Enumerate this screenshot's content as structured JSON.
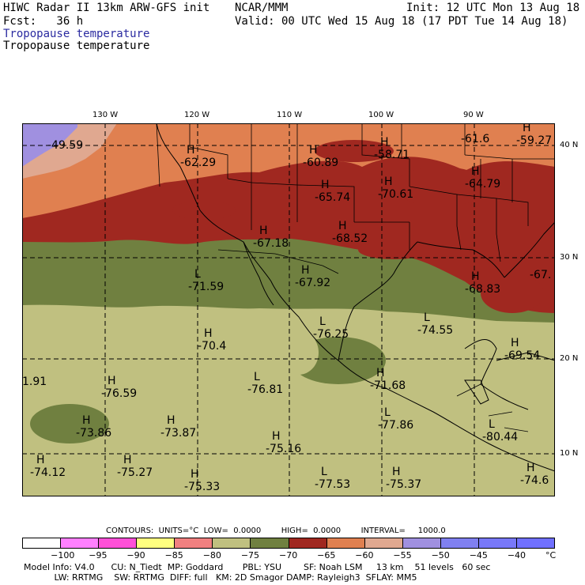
{
  "header": {
    "title": "HIWC Radar II 13km ARW-GFS init",
    "org": "NCAR/MMM",
    "init": "Init: 12 UTC Mon 13 Aug 18",
    "fcst": "Fcst:   36 h",
    "valid": "Valid: 00 UTC Wed 15 Aug 18 (17 PDT Tue 14 Aug 18)",
    "field_blue": "Tropopause temperature",
    "field_black": "Tropopause temperature"
  },
  "lon_labels": [
    "130 W",
    "120 W",
    "110 W",
    "100 W",
    "90 W"
  ],
  "lat_labels": [
    "40 N",
    "30 N",
    "20 N",
    "10 N"
  ],
  "highs_lows": [
    {
      "mark": "",
      "value": "-49.59"
    },
    {
      "mark": "H",
      "value": "-62.29"
    },
    {
      "mark": "H",
      "value": "-60.89"
    },
    {
      "mark": "H",
      "value": "-58.71"
    },
    {
      "mark": "",
      "value": "-61.6"
    },
    {
      "mark": "H",
      "value": "-59.27"
    },
    {
      "mark": "H",
      "value": "-65.74"
    },
    {
      "mark": "H",
      "value": "-70.61"
    },
    {
      "mark": "H",
      "value": "-64.79"
    },
    {
      "mark": "H",
      "value": "-67.18"
    },
    {
      "mark": "H",
      "value": "-68.52"
    },
    {
      "mark": "L",
      "value": "-71.59"
    },
    {
      "mark": "H",
      "value": "-67.92"
    },
    {
      "mark": "H",
      "value": "-68.83"
    },
    {
      "mark": "",
      "value": "-67."
    },
    {
      "mark": "L",
      "value": "-76.25"
    },
    {
      "mark": "L",
      "value": "-74.55"
    },
    {
      "mark": "H",
      "value": "-70.4"
    },
    {
      "mark": "H",
      "value": "-69.54"
    },
    {
      "mark": "",
      "value": "1.91"
    },
    {
      "mark": "H",
      "value": "-76.59"
    },
    {
      "mark": "L",
      "value": "-76.81"
    },
    {
      "mark": "H",
      "value": "-71.68"
    },
    {
      "mark": "H",
      "value": "-73.86"
    },
    {
      "mark": "H",
      "value": "-73.87"
    },
    {
      "mark": "H",
      "value": "-75.16"
    },
    {
      "mark": "L",
      "value": "-77.86"
    },
    {
      "mark": "L",
      "value": "-80.44"
    },
    {
      "mark": "H",
      "value": "-74.12"
    },
    {
      "mark": "H",
      "value": "-75.27"
    },
    {
      "mark": "H",
      "value": "-75.33"
    },
    {
      "mark": "L",
      "value": "-77.53"
    },
    {
      "mark": "H",
      "value": "-75.37"
    },
    {
      "mark": "H",
      "value": "-74.6"
    }
  ],
  "contours_line": "CONTOURS:  UNITS=°C  LOW=  0.0000        HIGH=  0.0000        INTERVAL=     1000.0",
  "colorbar": {
    "colors": [
      "#ffffff",
      "#ff80ff",
      "#ff50d8",
      "#ffff80",
      "#f08080",
      "#c0c080",
      "#708040",
      "#a02820",
      "#e08050",
      "#e0a890",
      "#a090e0",
      "#8080f0",
      "#7878f8",
      "#7070ff"
    ],
    "labels": [
      "−100",
      "−95",
      "−90",
      "−85",
      "−80",
      "−75",
      "−70",
      "−65",
      "−60",
      "−55",
      "−50",
      "−45",
      "−40",
      "°C"
    ]
  },
  "footer": {
    "line1": "Model Info: V4.0      CU: N_Tiedt  MP: Goddard       PBL: YSU        SF: Noah LSM     13 km    51 levels   60 sec",
    "line2": "           LW: RRTMG    SW: RRTMG  DIFF: full   KM: 2D Smagor DAMP: Rayleigh3  SFLAY: MM5"
  }
}
